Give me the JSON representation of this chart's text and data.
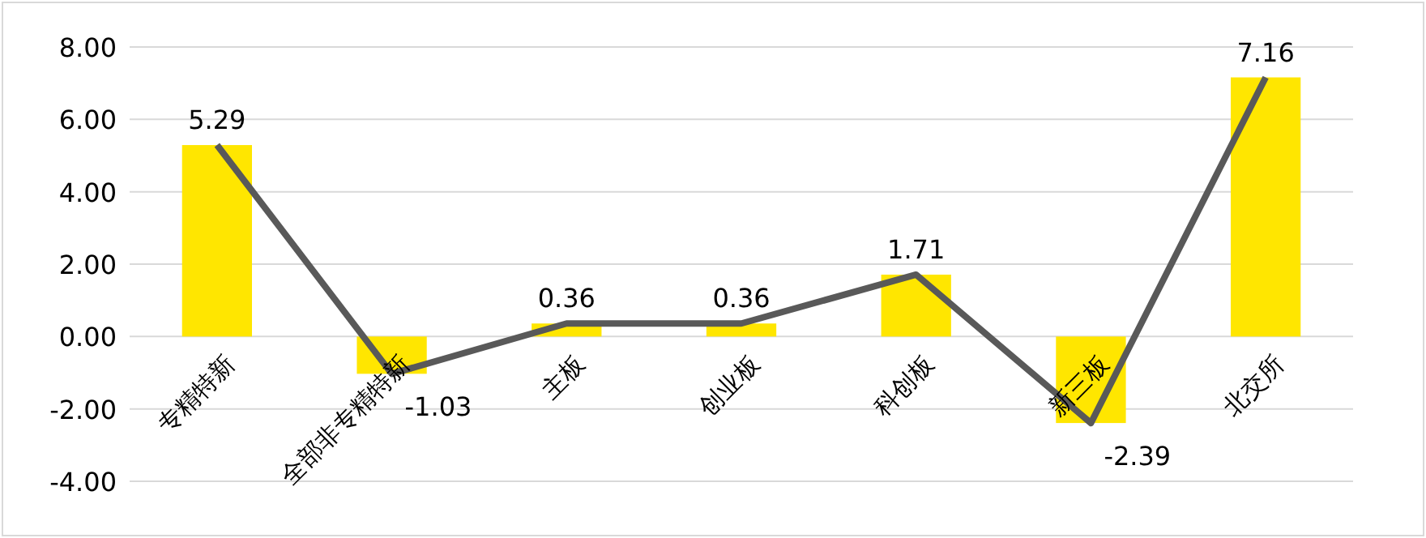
{
  "chart_data": {
    "type": "bar",
    "categories": [
      "专精特新",
      "全部非专精特新",
      "主板",
      "创业板",
      "科创板",
      "新三板",
      "北交所"
    ],
    "series": [
      {
        "color": "#ffe600",
        "values": [
          5.29,
          -1.03,
          0.36,
          0.36,
          1.71,
          -2.39,
          7.16
        ]
      },
      {
        "type": "line",
        "color": "#595959",
        "data_labels": true,
        "marker": "none",
        "line_style": "solid",
        "values": [
          5.29,
          -1.03,
          0.36,
          0.36,
          1.71,
          -2.39,
          7.16
        ]
      }
    ],
    "ylim": [
      -4,
      8
    ],
    "yticks": [
      {
        "value": -4,
        "label": "-4.00"
      },
      {
        "value": -2,
        "label": "-2.00"
      },
      {
        "value": 0,
        "label": "0.00"
      },
      {
        "value": 2,
        "label": "2.00"
      },
      {
        "value": 4,
        "label": "4.00"
      },
      {
        "value": 6,
        "label": "6.00"
      },
      {
        "value": 8,
        "label": "8.00"
      }
    ],
    "grid": "y"
  }
}
